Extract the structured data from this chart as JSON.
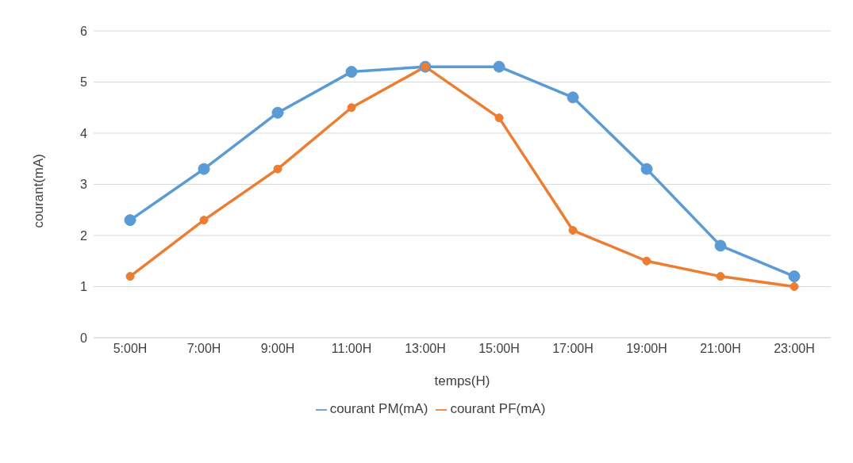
{
  "chart_data": {
    "type": "line",
    "xlabel": "temps(H)",
    "ylabel": "courant(mA)",
    "categories": [
      "5:00H",
      "7:00H",
      "9:00H",
      "11:00H",
      "13:00H",
      "15:00H",
      "17:00H",
      "19:00H",
      "21:00H",
      "23:00H"
    ],
    "series": [
      {
        "name": "courant PM(mA)",
        "color": "#5b9bd5",
        "values": [
          2.3,
          3.3,
          4.4,
          5.2,
          5.3,
          5.3,
          4.7,
          3.3,
          1.8,
          1.2
        ]
      },
      {
        "name": "courant PF(mA)",
        "color": "#ed7d31",
        "values": [
          1.2,
          2.3,
          3.3,
          4.5,
          5.3,
          4.3,
          2.1,
          1.5,
          1.2,
          1.0
        ]
      }
    ],
    "ylim": [
      0,
      6
    ],
    "yticks": [
      0,
      1,
      2,
      3,
      4,
      5,
      6
    ],
    "grid": "y",
    "legend": "bottom",
    "marker": "circle",
    "line_style": "solid"
  }
}
